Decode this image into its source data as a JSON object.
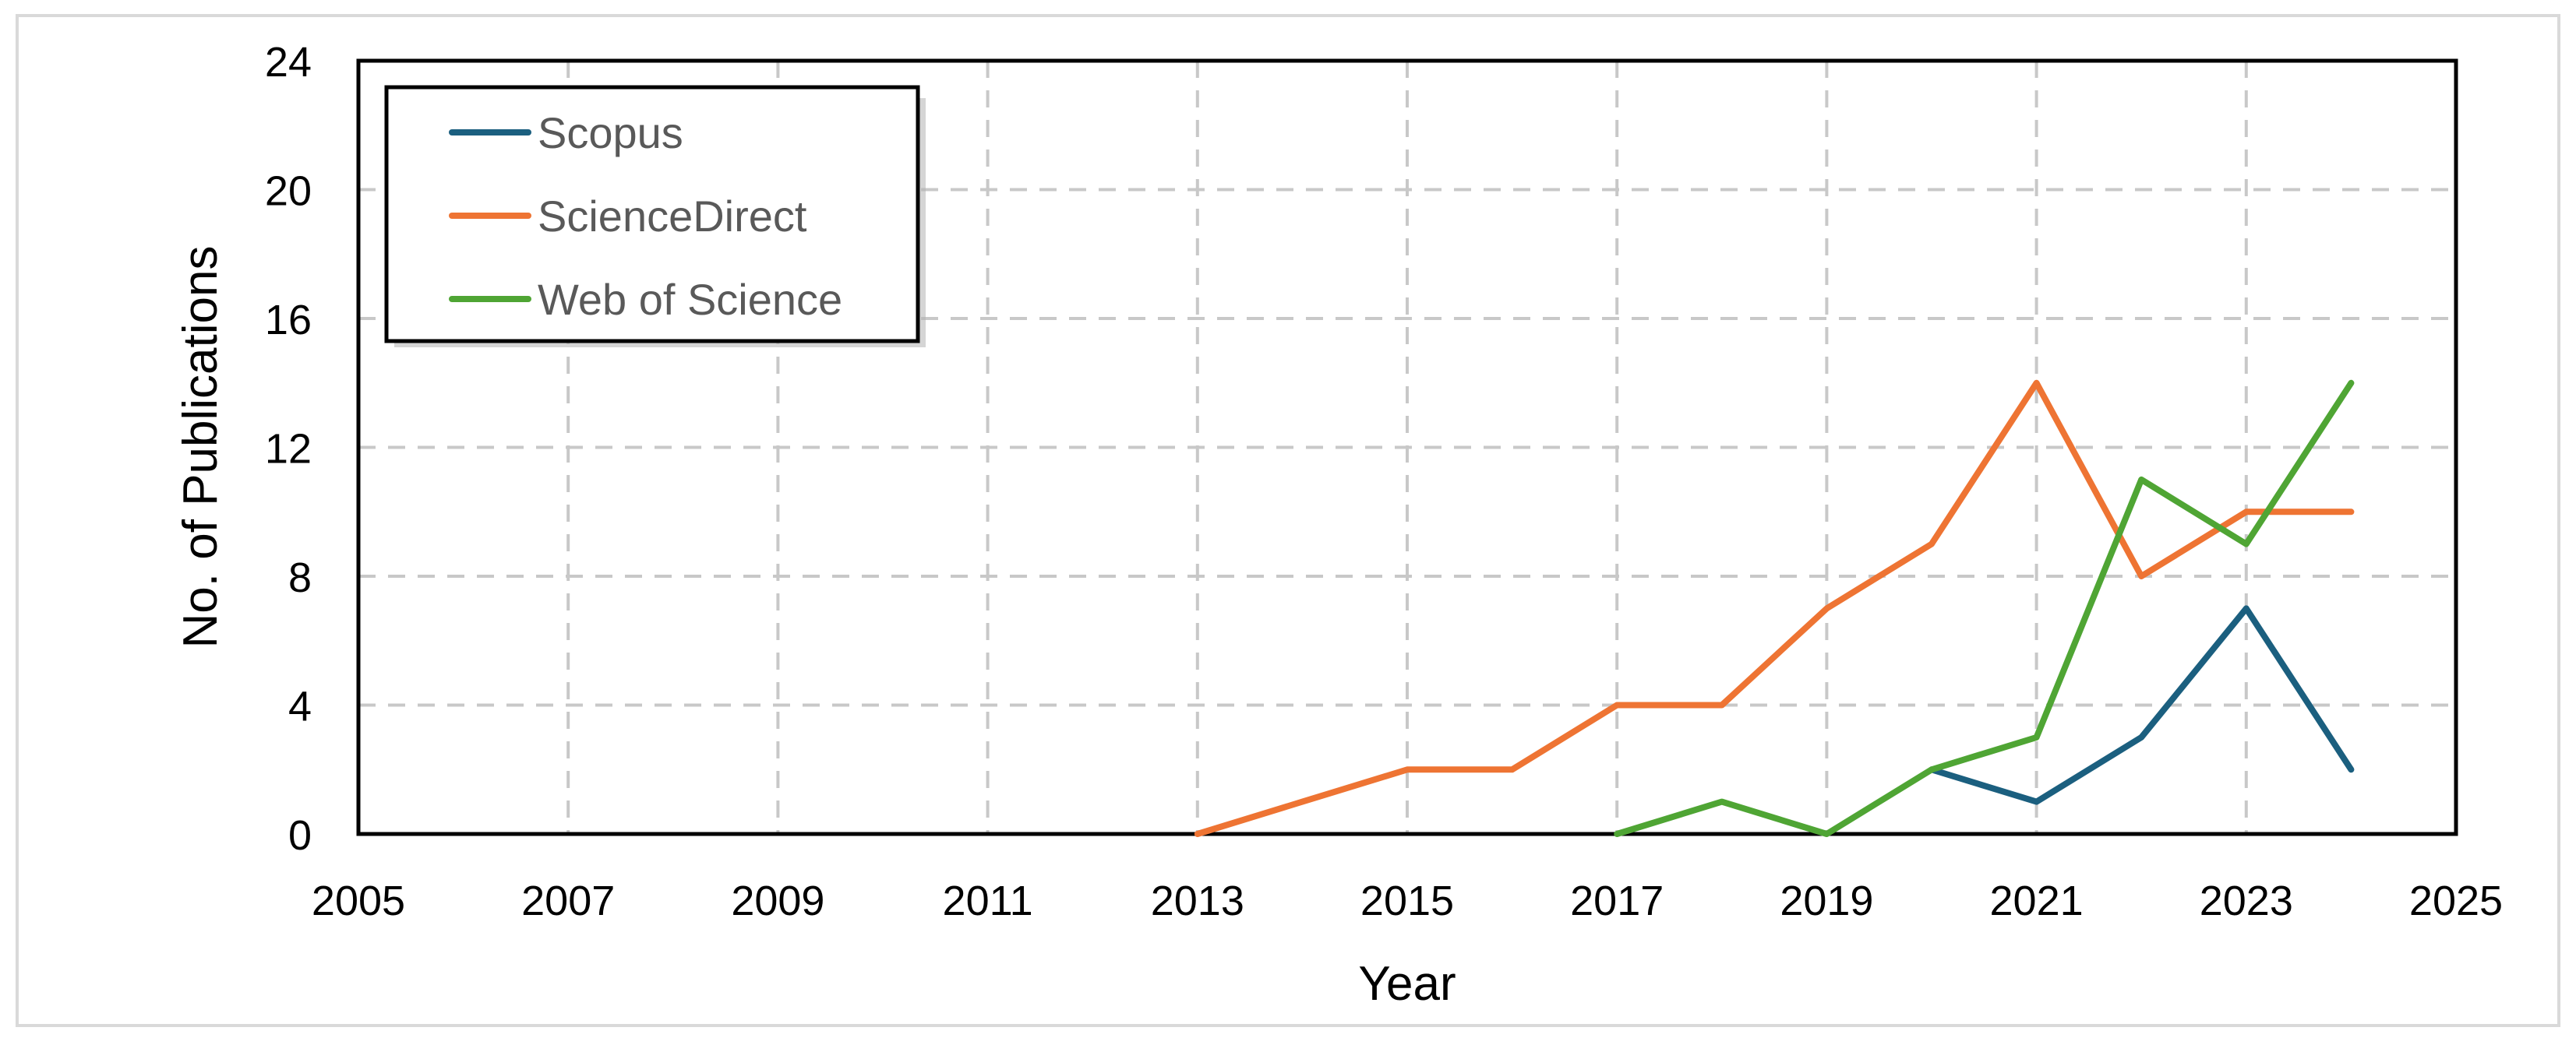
{
  "chart_data": {
    "type": "line",
    "title": "",
    "xlabel": "Year",
    "ylabel": "No. of Publications",
    "xlim": [
      2005,
      2025
    ],
    "ylim": [
      0,
      24
    ],
    "xticks": [
      2005,
      2007,
      2009,
      2011,
      2013,
      2015,
      2017,
      2019,
      2021,
      2023,
      2025
    ],
    "yticks": [
      0,
      4,
      8,
      12,
      16,
      20,
      24
    ],
    "grid": true,
    "legend_position": "top-left",
    "series": [
      {
        "name": "Scopus",
        "color": "#1b5f7f",
        "x": [
          2020,
          2021,
          2022,
          2023,
          2024
        ],
        "y": [
          2,
          1,
          3,
          7,
          2
        ]
      },
      {
        "name": "ScienceDirect",
        "color": "#ee7433",
        "x": [
          2013,
          2014,
          2015,
          2016,
          2017,
          2018,
          2019,
          2020,
          2021,
          2022,
          2023,
          2024
        ],
        "y": [
          0,
          1,
          2,
          2,
          4,
          4,
          7,
          9,
          14,
          8,
          10,
          10
        ]
      },
      {
        "name": "Web of Science",
        "color": "#4fa534",
        "x": [
          2017,
          2018,
          2019,
          2020,
          2021,
          2022,
          2023,
          2024
        ],
        "y": [
          0,
          1,
          0,
          2,
          3,
          11,
          9,
          14
        ]
      }
    ]
  }
}
